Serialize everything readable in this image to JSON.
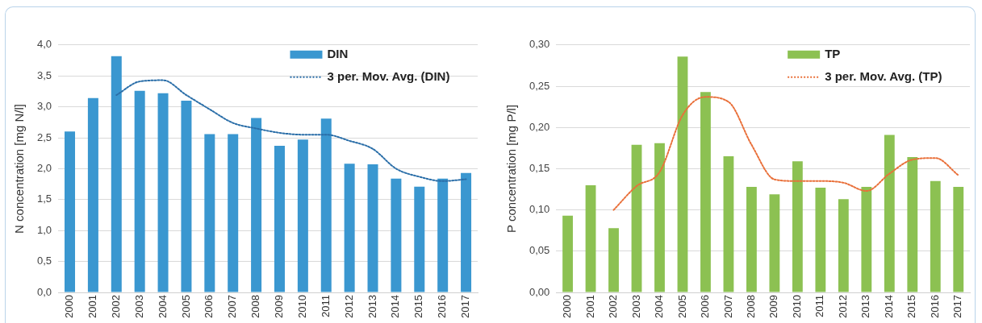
{
  "chart_data": [
    {
      "type": "bar",
      "ylabel": "N concentration [mg N/l]",
      "categories": [
        "2000",
        "2001",
        "2002",
        "2003",
        "2004",
        "2005",
        "2006",
        "2007",
        "2008",
        "2009",
        "2010",
        "2011",
        "2012",
        "2013",
        "2014",
        "2015",
        "2016",
        "2017"
      ],
      "series": [
        {
          "name": "DIN",
          "color": "#3a97d0",
          "values": [
            2.6,
            3.14,
            3.82,
            3.26,
            3.22,
            3.1,
            2.56,
            2.56,
            2.82,
            2.37,
            2.47,
            2.81,
            2.08,
            2.07,
            1.84,
            1.71,
            1.84,
            1.93
          ]
        },
        {
          "name": "3 per. Mov. Avg. (DIN)",
          "type": "line",
          "line_style": "dotted",
          "color": "#2a6ea8",
          "values": [
            null,
            null,
            3.19,
            3.41,
            3.43,
            3.19,
            2.96,
            2.74,
            2.65,
            2.58,
            2.55,
            2.55,
            2.45,
            2.32,
            2.0,
            1.87,
            1.8,
            1.83
          ]
        }
      ],
      "ylim": [
        0,
        4
      ],
      "yticks": [
        {
          "value": 0,
          "label": "0,0"
        },
        {
          "value": 0.5,
          "label": "0,5"
        },
        {
          "value": 1,
          "label": "1,0"
        },
        {
          "value": 1.5,
          "label": "1,5"
        },
        {
          "value": 2,
          "label": "2,0"
        },
        {
          "value": 2.5,
          "label": "2,5"
        },
        {
          "value": 3,
          "label": "3,0"
        },
        {
          "value": 3.5,
          "label": "3,5"
        },
        {
          "value": 4,
          "label": "4,0"
        }
      ],
      "grid": "y",
      "legend": "top right",
      "marker": "none"
    },
    {
      "type": "bar",
      "ylabel": "P concentration [mg P/l]",
      "categories": [
        "2000",
        "2001",
        "2002",
        "2003",
        "2004",
        "2005",
        "2006",
        "2007",
        "2008",
        "2009",
        "2010",
        "2011",
        "2012",
        "2013",
        "2014",
        "2015",
        "2016",
        "2017"
      ],
      "series": [
        {
          "name": "TP",
          "color": "#8cc152",
          "values": [
            0.093,
            0.13,
            0.078,
            0.179,
            0.181,
            0.286,
            0.243,
            0.165,
            0.128,
            0.119,
            0.159,
            0.127,
            0.113,
            0.128,
            0.191,
            0.164,
            0.135,
            0.128
          ]
        },
        {
          "name": "3 per. Mov. Avg. (TP)",
          "type": "line",
          "line_style": "dotted",
          "color": "#e9703a",
          "values": [
            null,
            null,
            0.1,
            0.129,
            0.146,
            0.215,
            0.237,
            0.231,
            0.179,
            0.137,
            0.135,
            0.135,
            0.133,
            0.123,
            0.144,
            0.161,
            0.163,
            0.142
          ]
        }
      ],
      "ylim": [
        0,
        0.3
      ],
      "yticks": [
        {
          "value": 0,
          "label": "0,00"
        },
        {
          "value": 0.05,
          "label": "0,05"
        },
        {
          "value": 0.1,
          "label": "0,10"
        },
        {
          "value": 0.15,
          "label": "0,15"
        },
        {
          "value": 0.2,
          "label": "0,20"
        },
        {
          "value": 0.25,
          "label": "0,25"
        },
        {
          "value": 0.3,
          "label": "0,30"
        }
      ],
      "grid": "y",
      "legend": "top right",
      "marker": "none"
    }
  ]
}
